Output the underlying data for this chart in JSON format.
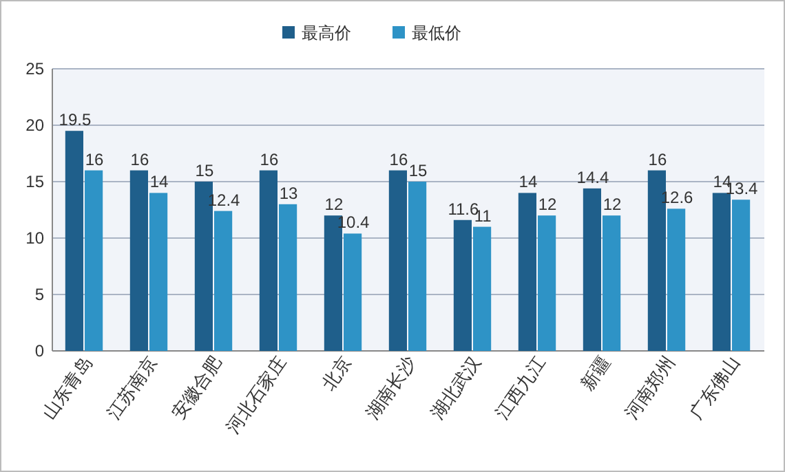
{
  "chart_data": {
    "type": "bar",
    "categories": [
      "山东青岛",
      "江苏南京",
      "安徽合肥",
      "河北石家庄",
      "北京",
      "湖南长沙",
      "湖北武汉",
      "江西九江",
      "新疆",
      "河南郑州",
      "广东佛山"
    ],
    "series": [
      {
        "name": "最高价",
        "color": "#1f5f8b",
        "values": [
          19.5,
          16,
          15,
          16,
          12,
          16,
          11.6,
          14,
          14.4,
          16,
          14
        ]
      },
      {
        "name": "最低价",
        "color": "#2e93c6",
        "values": [
          16,
          14,
          12.4,
          13,
          10.4,
          15,
          11,
          12,
          12,
          12.6,
          13.4
        ]
      }
    ],
    "ylim": [
      0,
      25
    ],
    "yticks": [
      0,
      5,
      10,
      15,
      20,
      25
    ],
    "grid": "y",
    "legend": "top",
    "data_labels": true
  }
}
